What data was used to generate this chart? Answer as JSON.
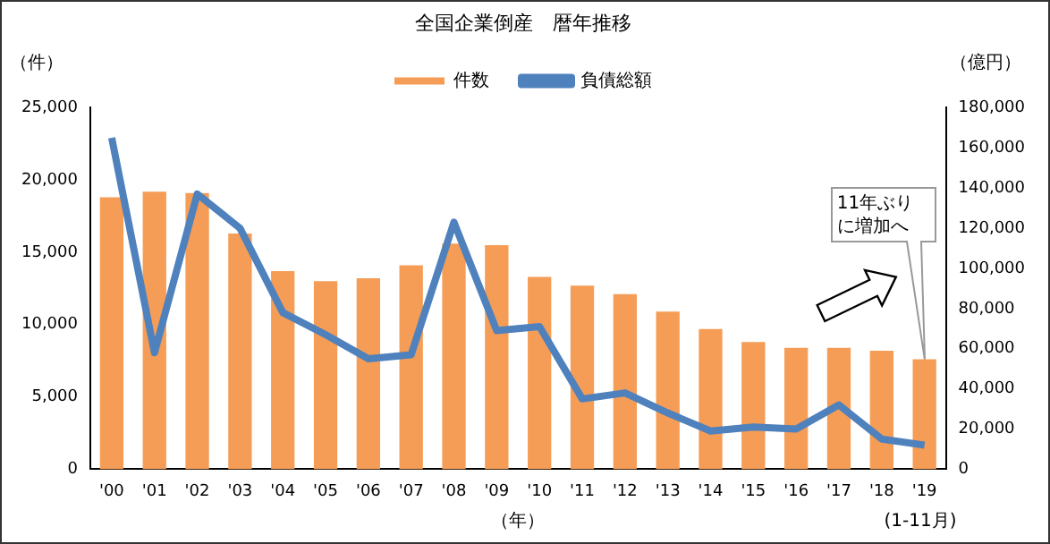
{
  "chart_data": {
    "type": "bar",
    "title": "全国企業倒産　暦年推移",
    "xlabel": "（年）",
    "ylabel": "（件）",
    "y2label": "（億円）",
    "categories": [
      "'00",
      "'01",
      "'02",
      "'03",
      "'04",
      "'05",
      "'06",
      "'07",
      "'08",
      "'09",
      "'10",
      "'11",
      "'12",
      "'13",
      "'14",
      "'15",
      "'16",
      "'17",
      "'18",
      "'19"
    ],
    "series": [
      {
        "name": "件数",
        "color": "#f59d56",
        "values": [
          18800,
          19200,
          19100,
          16300,
          13700,
          13000,
          13200,
          14100,
          15600,
          15500,
          13300,
          12700,
          12100,
          10900,
          9700,
          8800,
          8400,
          8400,
          8200,
          7600
        ]
      },
      {
        "name": "負債総額",
        "type": "line",
        "axis": "y2",
        "color": "#4f81bd",
        "values": [
          165000,
          58000,
          137000,
          120000,
          78000,
          67000,
          55000,
          57000,
          123000,
          69000,
          71000,
          35000,
          38000,
          28000,
          19000,
          21000,
          20000,
          32000,
          15000,
          12000
        ]
      }
    ],
    "ylim": [
      0,
      25000
    ],
    "yticks": [
      0,
      {
        "value": 5000,
        "label": "5,000"
      },
      {
        "value": 10000,
        "label": "10,000"
      },
      {
        "value": 15000,
        "label": "15,000"
      },
      {
        "value": 20000,
        "label": "20,000"
      },
      {
        "value": 25000,
        "label": "25,000"
      }
    ],
    "y2lim": [
      0,
      180000
    ],
    "y2ticks": [
      0,
      {
        "value": 20000,
        "label": "20,000"
      },
      {
        "value": 40000,
        "label": "40,000"
      },
      {
        "value": 60000,
        "label": "60,000"
      },
      {
        "value": 80000,
        "label": "80,000"
      },
      {
        "value": 100000,
        "label": "100,000"
      },
      {
        "value": 120000,
        "label": "120,000"
      },
      {
        "value": 140000,
        "label": "140,000"
      },
      {
        "value": 160000,
        "label": "160,000"
      },
      {
        "value": 180000,
        "label": "180,000"
      }
    ],
    "legend": "top",
    "grid": false,
    "marker": "none",
    "annotations": [
      "11年ぶりに増加へ",
      "(1-11月)"
    ]
  }
}
